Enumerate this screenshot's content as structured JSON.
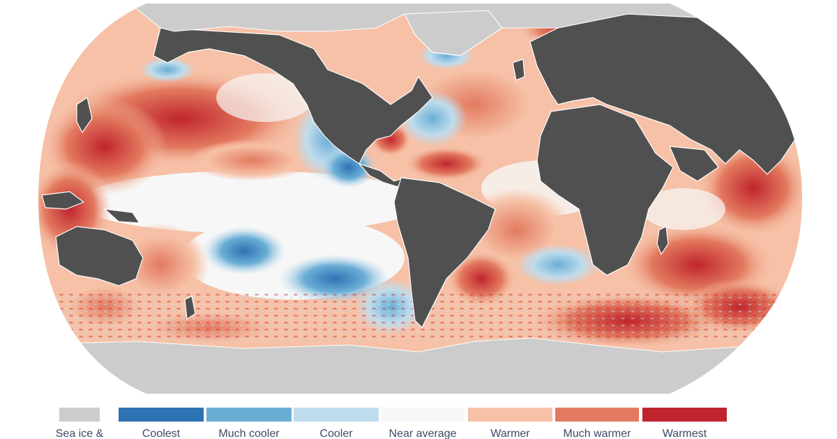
{
  "map": {
    "colors": {
      "land": "#505050",
      "ice": "#cccccc",
      "coast": "#ffffff"
    },
    "icons": {
      "basemap": "world-map-robinson-projection"
    }
  },
  "legend": {
    "items": [
      {
        "key": "sea-ice",
        "label": "Sea ice &",
        "color": "#cccccc"
      },
      {
        "key": "coolest",
        "label": "Coolest",
        "color": "#2f72b3"
      },
      {
        "key": "much-cooler",
        "label": "Much cooler",
        "color": "#6aaed6"
      },
      {
        "key": "cooler",
        "label": "Cooler",
        "color": "#bfdcec"
      },
      {
        "key": "near-average",
        "label": "Near average",
        "color": "#f7f7f7"
      },
      {
        "key": "warmer",
        "label": "Warmer",
        "color": "#f6c1a7"
      },
      {
        "key": "much-warmer",
        "label": "Much warmer",
        "color": "#e37a5f"
      },
      {
        "key": "warmest",
        "label": "Warmest",
        "color": "#c0252e"
      }
    ]
  }
}
